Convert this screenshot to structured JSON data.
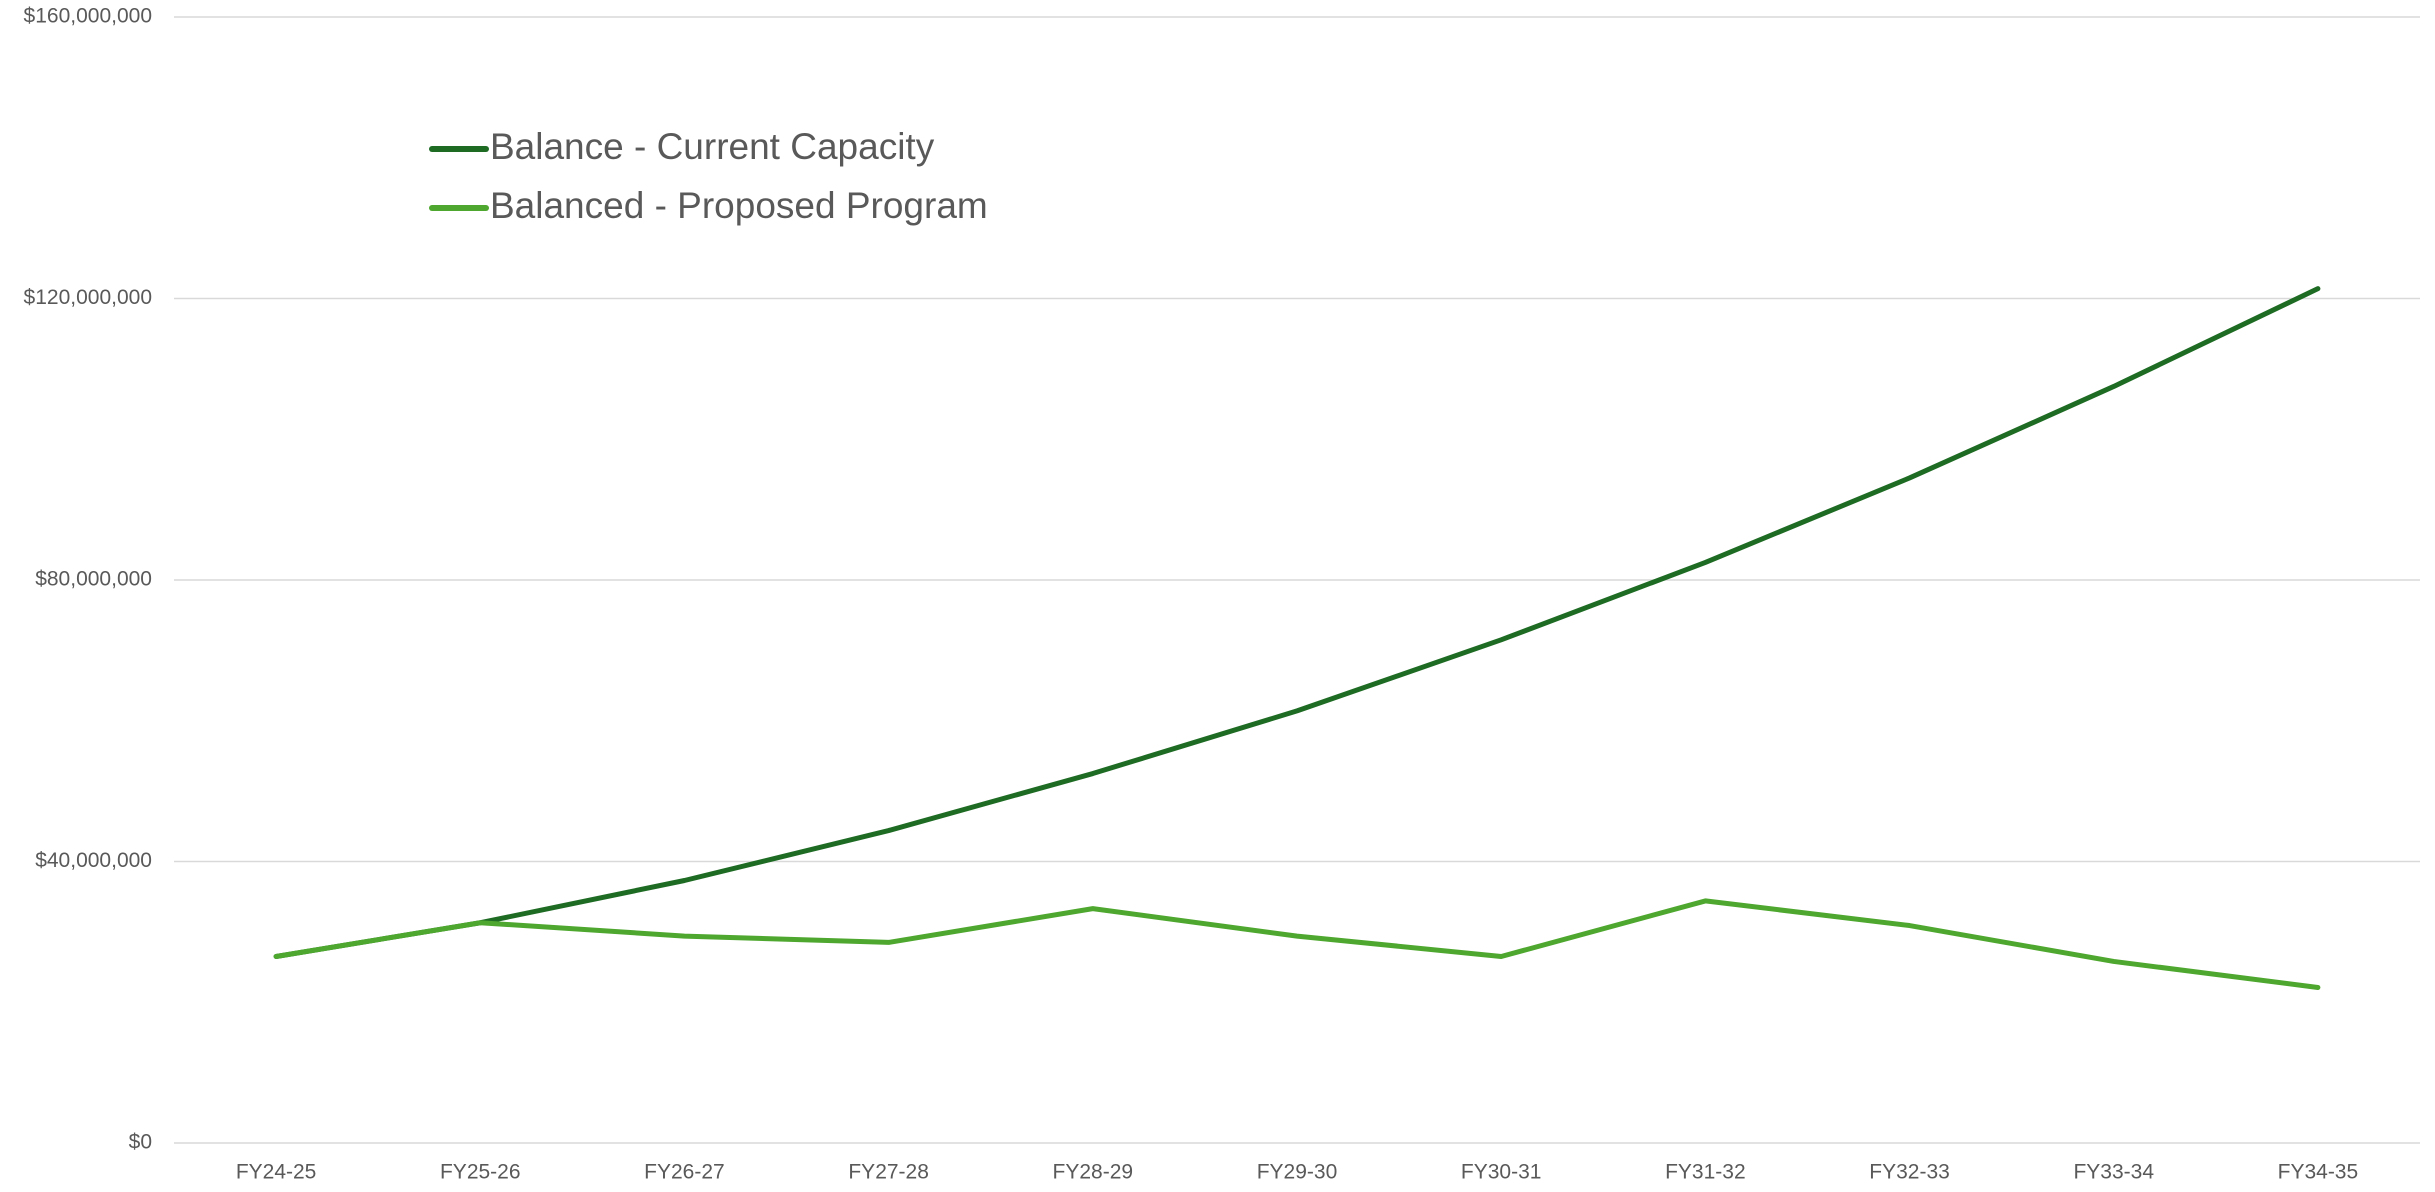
{
  "chart_data": {
    "type": "line",
    "categories": [
      "FY24-25",
      "FY25-26",
      "FY26-27",
      "FY27-28",
      "FY28-29",
      "FY29-30",
      "FY30-31",
      "FY31-32",
      "FY32-33",
      "FY33-34",
      "FY34-35"
    ],
    "series": [
      {
        "name": "Balance - Current Capacity",
        "color": "#1e6b24",
        "values": [
          26500000,
          31300000,
          37300000,
          44400000,
          52500000,
          61400000,
          71500000,
          82500000,
          94500000,
          107500000,
          121400000
        ]
      },
      {
        "name": "Balanced - Proposed Program",
        "color": "#4ea72e",
        "values": [
          26500000,
          31300000,
          29400000,
          28500000,
          33300000,
          29400000,
          26500000,
          34400000,
          30900000,
          25800000,
          22100000
        ]
      }
    ],
    "ylim": [
      0,
      160000000
    ],
    "yticks": [
      {
        "value": 0,
        "label": "$0"
      },
      {
        "value": 40000000,
        "label": "$40,000,000"
      },
      {
        "value": 80000000,
        "label": "$80,000,000"
      },
      {
        "value": 120000000,
        "label": "$120,000,000"
      },
      {
        "value": 160000000,
        "label": "$160,000,000"
      }
    ],
    "grid": true,
    "legend": "top-left"
  }
}
